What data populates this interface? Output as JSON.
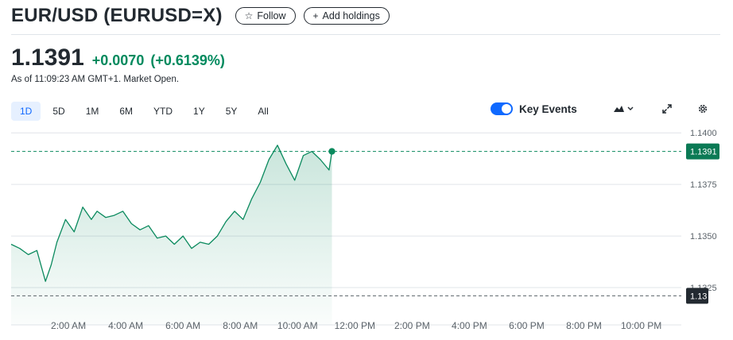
{
  "header": {
    "title": "EUR/USD (EURUSD=X)",
    "follow_icon": "☆",
    "follow_label": "Follow",
    "add_icon": "+",
    "add_label": "Add holdings"
  },
  "quote": {
    "price": "1.1391",
    "change": "+0.0070",
    "change_pct": "(+0.6139%)",
    "as_of": "As of 11:09:23 AM GMT+1. Market Open."
  },
  "ranges": [
    "1D",
    "5D",
    "1M",
    "6M",
    "YTD",
    "1Y",
    "5Y",
    "All"
  ],
  "active_range": "1D",
  "key_events": {
    "label": "Key Events",
    "enabled": true
  },
  "toolbar": {
    "chart_type_icon": "mountain-chart-icon",
    "expand_icon": "expand-icon",
    "settings_icon": "gear-icon"
  },
  "colors": {
    "line": "#0b8a5e",
    "accent_blue": "#0f69ff",
    "price_badge": "#0b7a55",
    "prev_close_badge": "#232a31",
    "positive": "#008a5e"
  },
  "chart_data": {
    "type": "area",
    "y_ticks": [
      "1.1400",
      "1.1375",
      "1.1350",
      "1.1325"
    ],
    "ylim": [
      1.132,
      1.1402
    ],
    "x_ticks": [
      "2:00 AM",
      "4:00 AM",
      "6:00 AM",
      "8:00 AM",
      "10:00 AM",
      "12:00 PM",
      "2:00 PM",
      "4:00 PM",
      "6:00 PM",
      "8:00 PM",
      "10:00 PM"
    ],
    "x_tick_hours": [
      2,
      4,
      6,
      8,
      10,
      12,
      14,
      16,
      18,
      20,
      22
    ],
    "x_range_hours": [
      0,
      23.4
    ],
    "current_price": {
      "value": 1.1391,
      "label": "1.1391"
    },
    "previous_close": {
      "value": 1.1321,
      "label": "1.13"
    },
    "grid": true,
    "series": [
      {
        "hours": [
          0.0,
          0.3,
          0.6,
          0.9,
          1.2,
          1.4,
          1.6,
          1.9,
          2.2,
          2.5,
          2.8,
          3.0,
          3.3,
          3.6,
          3.9,
          4.2,
          4.5,
          4.8,
          5.1,
          5.4,
          5.7,
          6.0,
          6.3,
          6.6,
          6.9,
          7.2,
          7.5,
          7.8,
          8.1,
          8.4,
          8.7,
          9.0,
          9.3,
          9.6,
          9.9,
          10.2,
          10.5,
          10.8,
          11.1,
          11.2
        ],
        "values": [
          1.1346,
          1.1344,
          1.1341,
          1.1343,
          1.1328,
          1.1336,
          1.1347,
          1.1358,
          1.1352,
          1.1364,
          1.1358,
          1.1362,
          1.1359,
          1.136,
          1.1362,
          1.1356,
          1.1353,
          1.1355,
          1.1349,
          1.135,
          1.1346,
          1.135,
          1.1344,
          1.1347,
          1.1346,
          1.135,
          1.1357,
          1.1362,
          1.1358,
          1.1368,
          1.1376,
          1.1387,
          1.1394,
          1.1385,
          1.1377,
          1.1389,
          1.1391,
          1.1387,
          1.1382,
          1.1391
        ]
      }
    ]
  }
}
